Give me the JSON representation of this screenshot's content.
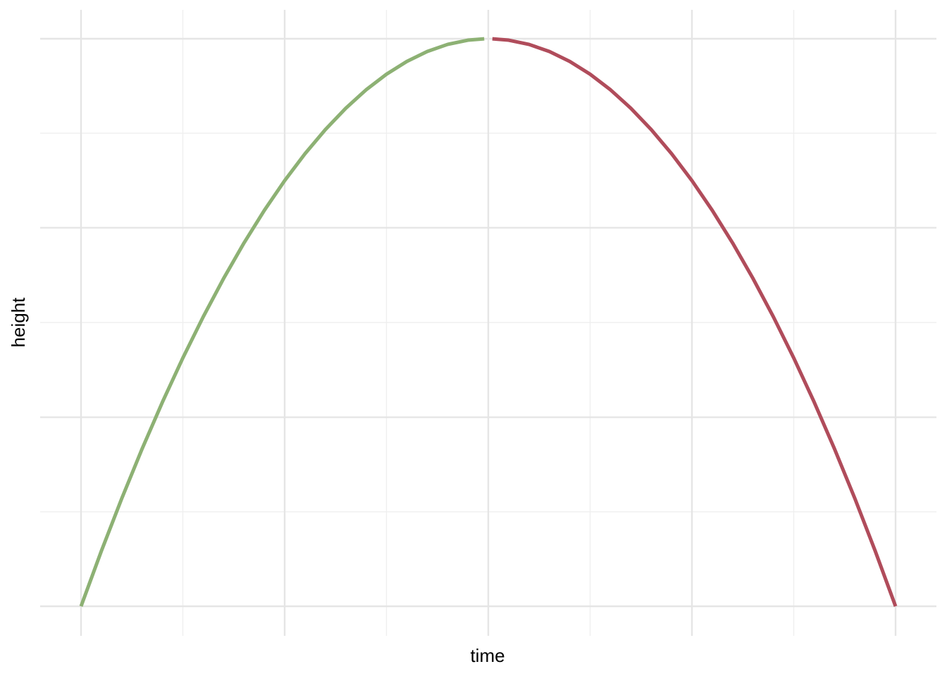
{
  "chart_data": {
    "type": "line",
    "title": "",
    "xlabel": "time",
    "ylabel": "height",
    "xlim": [
      0,
      1
    ],
    "ylim": [
      0,
      1
    ],
    "grid": true,
    "legend": "none",
    "x_ticks": [
      0,
      0.25,
      0.5,
      0.75,
      1
    ],
    "y_ticks": [
      0,
      0.333,
      0.667,
      1
    ],
    "series": [
      {
        "color": "#8db174",
        "x": [
          0.0,
          0.025,
          0.05,
          0.075,
          0.1,
          0.125,
          0.15,
          0.175,
          0.2,
          0.225,
          0.25,
          0.275,
          0.3,
          0.325,
          0.35,
          0.375,
          0.4,
          0.425,
          0.45,
          0.475,
          0.495
        ],
        "y": [
          0.0,
          0.0975,
          0.19,
          0.2775,
          0.36,
          0.4375,
          0.51,
          0.5775,
          0.64,
          0.6975,
          0.75,
          0.7975,
          0.84,
          0.8775,
          0.91,
          0.9375,
          0.96,
          0.9775,
          0.99,
          0.9975,
          0.9999
        ]
      },
      {
        "color": "#b04c5b",
        "x": [
          0.505,
          0.525,
          0.55,
          0.575,
          0.6,
          0.625,
          0.65,
          0.675,
          0.7,
          0.725,
          0.75,
          0.775,
          0.8,
          0.825,
          0.85,
          0.875,
          0.9,
          0.925,
          0.95,
          0.975,
          1.0
        ],
        "y": [
          0.9999,
          0.9975,
          0.99,
          0.9775,
          0.96,
          0.9375,
          0.91,
          0.8775,
          0.84,
          0.7975,
          0.75,
          0.6975,
          0.64,
          0.5775,
          0.51,
          0.4375,
          0.36,
          0.2775,
          0.19,
          0.0975,
          0.0
        ]
      }
    ]
  }
}
